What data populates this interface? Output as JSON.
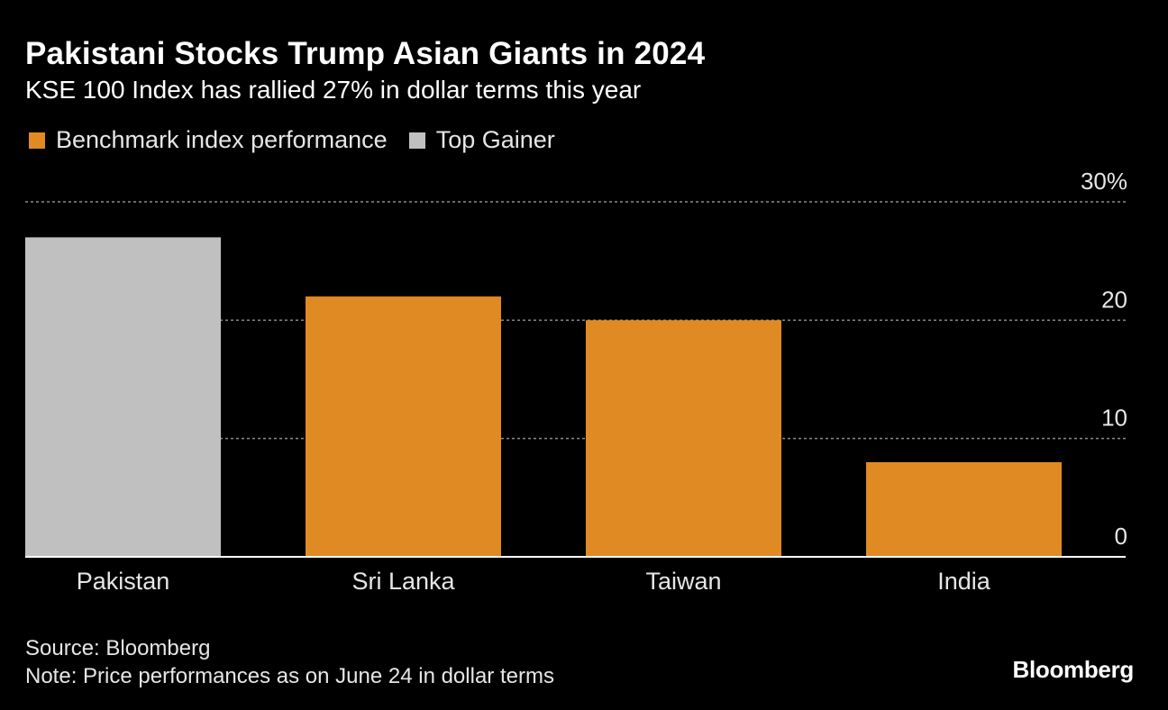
{
  "header": {
    "title": "Pakistani Stocks Trump Asian Giants in 2024",
    "subtitle": "KSE 100 Index has rallied 27% in dollar terms this year"
  },
  "legend": {
    "items": [
      {
        "label": "Benchmark index performance",
        "color": "#e08a23"
      },
      {
        "label": "Top Gainer",
        "color": "#c0c0c0"
      }
    ]
  },
  "chart_data": {
    "type": "bar",
    "title": "Pakistani Stocks Trump Asian Giants in 2024",
    "subtitle": "KSE 100 Index has rallied 27% in dollar terms this year",
    "categories": [
      "Pakistan",
      "Sri Lanka",
      "Taiwan",
      "India"
    ],
    "values": [
      27,
      22,
      20,
      8
    ],
    "colors": [
      "#c0c0c0",
      "#e08a23",
      "#e08a23",
      "#e08a23"
    ],
    "series_labels": [
      "Top Gainer",
      "Benchmark index performance",
      "Benchmark index performance",
      "Benchmark index performance"
    ],
    "ylim": [
      0,
      30
    ],
    "yticks": [
      0,
      10,
      20,
      30
    ],
    "ytick_labels": [
      "0",
      "10",
      "20",
      "30%"
    ],
    "yaxis_position": "right",
    "grid": true,
    "xlabel": "",
    "ylabel": ""
  },
  "footer": {
    "source": "Source: Bloomberg",
    "note": "Note: Price performances as on June 24 in dollar terms",
    "logo": "Bloomberg"
  }
}
